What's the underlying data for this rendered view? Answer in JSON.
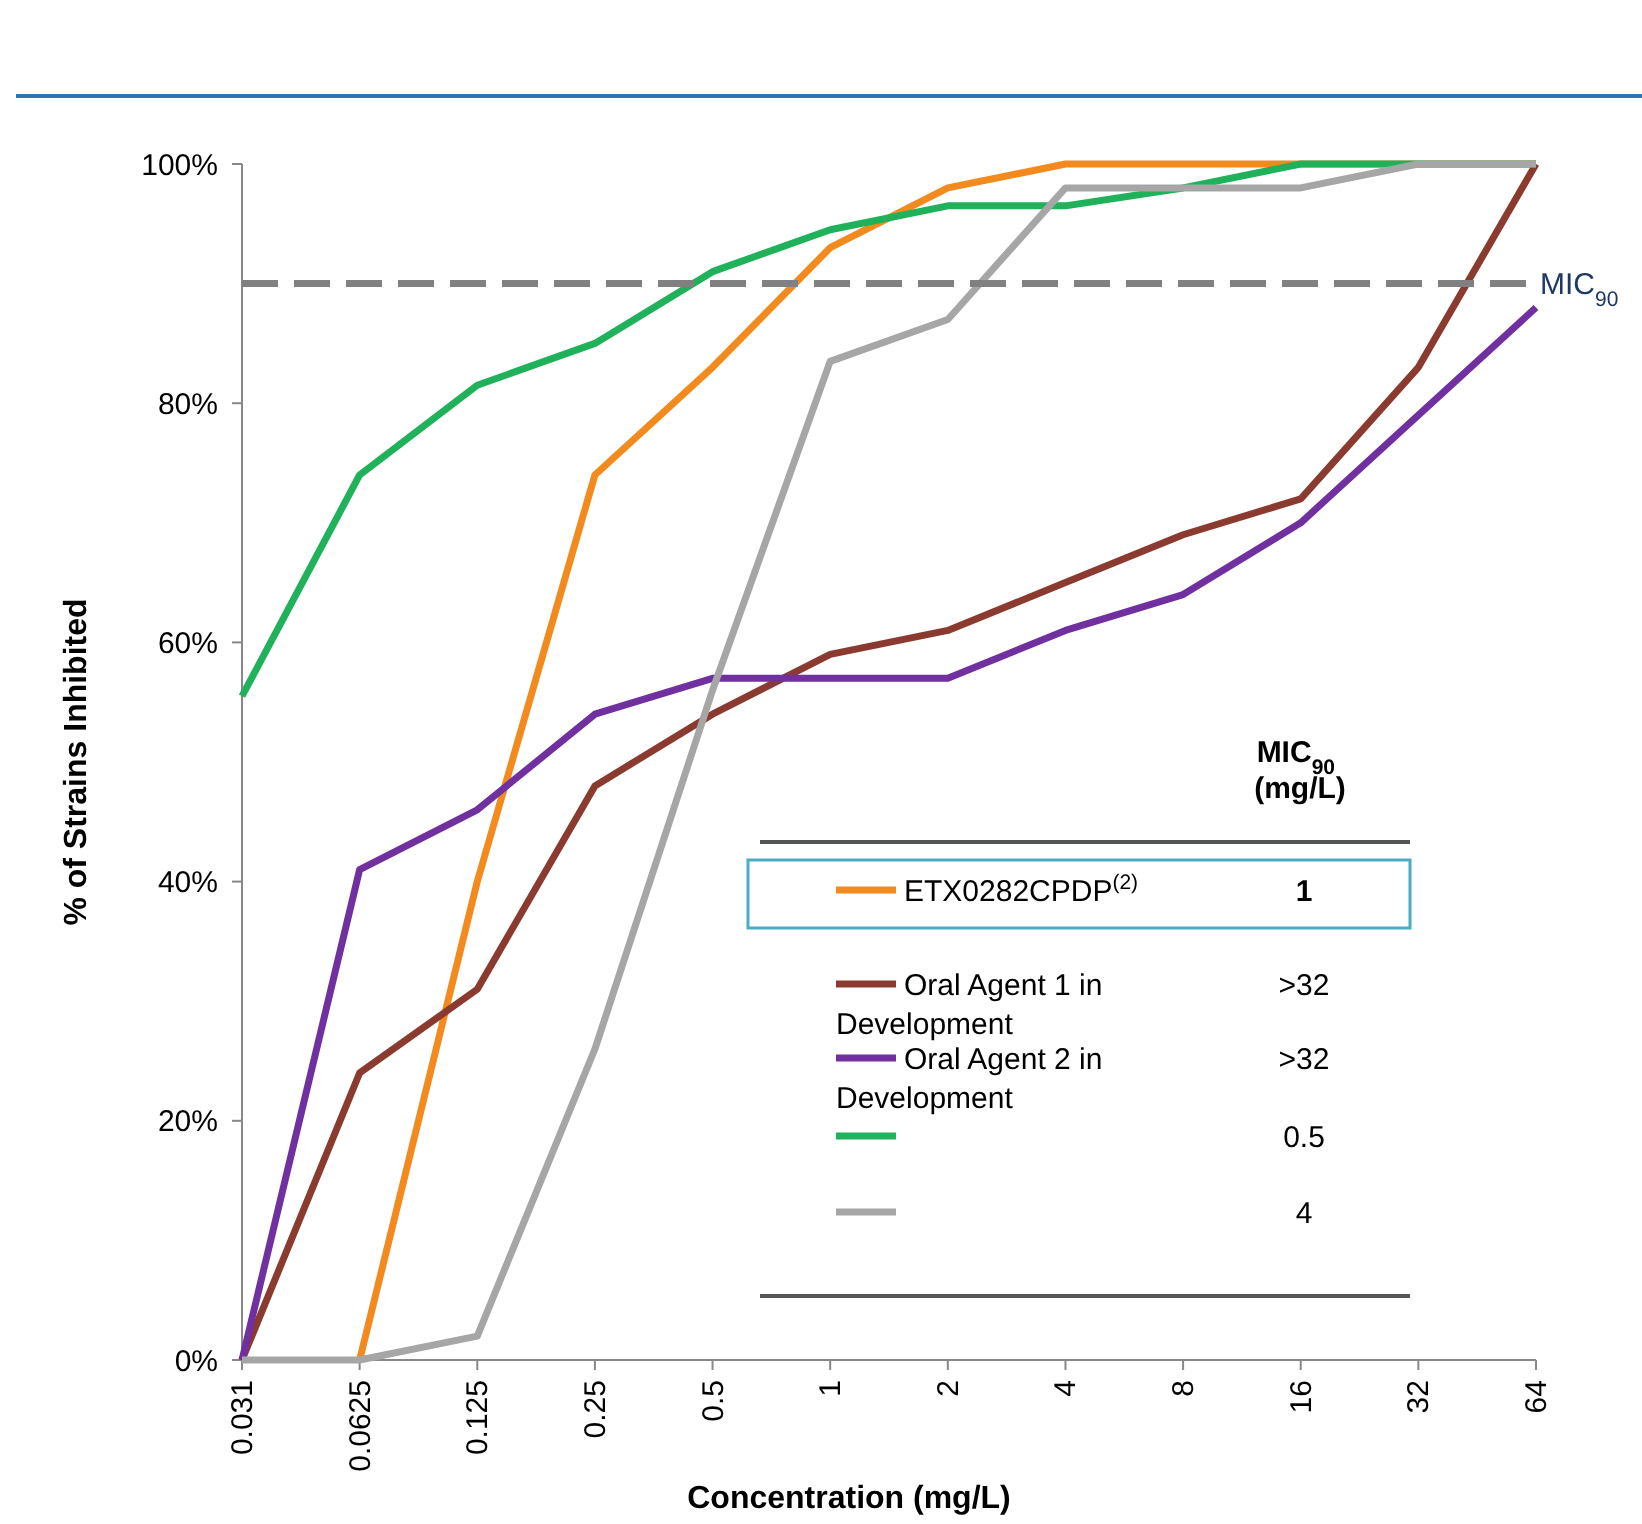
{
  "chart_data": {
    "type": "line",
    "xlabel": "Concentration (mg/L)",
    "ylabel": "% of Strains Inhibited",
    "categories": [
      "0.031",
      "0.0625",
      "0.125",
      "0.25",
      "0.5",
      "1",
      "2",
      "4",
      "8",
      "16",
      "32",
      "64"
    ],
    "series": [
      {
        "name": "ETX0282CPDP$^{(2)}$",
        "color": "#f28a1e",
        "values": [
          null,
          0,
          40,
          74,
          83,
          93,
          98,
          100,
          100,
          100,
          100,
          100
        ]
      },
      {
        "name": "Oral Agent 1 in Development",
        "color": "#8b3a2f",
        "values": [
          0,
          24,
          31,
          48,
          54,
          59,
          61,
          65,
          69,
          72,
          83,
          100
        ]
      },
      {
        "name": "Oral Agent 2 in Development",
        "color": "#7030a0",
        "values": [
          0,
          41,
          46,
          54,
          57,
          57,
          57,
          61,
          64,
          70,
          79,
          88
        ]
      },
      {
        "color": "#1fb25a",
        "values": [
          55.5,
          74,
          81.5,
          85,
          91,
          94.5,
          96.5,
          96.5,
          98,
          100,
          100,
          100
        ]
      },
      {
        "color": "#a6a6a6",
        "values": [
          0,
          0,
          2,
          26,
          56,
          83.5,
          87,
          98,
          98,
          98,
          100,
          100
        ]
      }
    ],
    "ylim": [
      0,
      100
    ],
    "yticks": [
      {
        "value": 0,
        "label": "0%"
      },
      {
        "value": 20,
        "label": "20%"
      },
      {
        "value": 40,
        "label": "40%"
      },
      {
        "value": 60,
        "label": "60%"
      },
      {
        "value": 80,
        "label": "80%"
      },
      {
        "value": 100,
        "label": "100%"
      }
    ],
    "ref_lines": [
      {
        "axis": "y",
        "value": 90,
        "label": "MIC$_{90}$",
        "color": "#808080",
        "line_style": "dashed"
      }
    ],
    "annotations": [
      "MIC$_{90}$ (mg/L)",
      "1",
      ">32",
      ">32",
      "0.5",
      "4"
    ],
    "legend": "bottom right",
    "grid": false,
    "marker": "none",
    "line_style": "solid"
  }
}
